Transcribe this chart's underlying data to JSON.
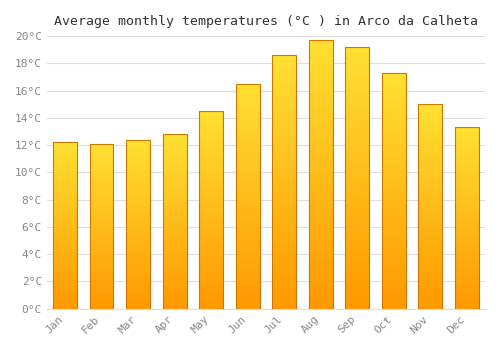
{
  "months": [
    "Jan",
    "Feb",
    "Mar",
    "Apr",
    "May",
    "Jun",
    "Jul",
    "Aug",
    "Sep",
    "Oct",
    "Nov",
    "Dec"
  ],
  "temperatures": [
    12.2,
    12.1,
    12.4,
    12.8,
    14.5,
    16.5,
    18.6,
    19.7,
    19.2,
    17.3,
    15.0,
    13.3
  ],
  "title": "Average monthly temperatures (°C ) in Arco da Calheta",
  "bar_color": "#FFA500",
  "bar_gradient_top": "#FFD060",
  "bar_gradient_bottom": "#FFA000",
  "bar_edge_color": "#CC7700",
  "background_color": "#FFFFFF",
  "plot_bg_color": "#FFFFFF",
  "grid_color": "#DDDDDD",
  "ylim": [
    0,
    20
  ],
  "ytick_step": 2,
  "title_fontsize": 9.5,
  "tick_fontsize": 8,
  "tick_color": "#888888",
  "label_color": "#555555",
  "font_family": "monospace"
}
